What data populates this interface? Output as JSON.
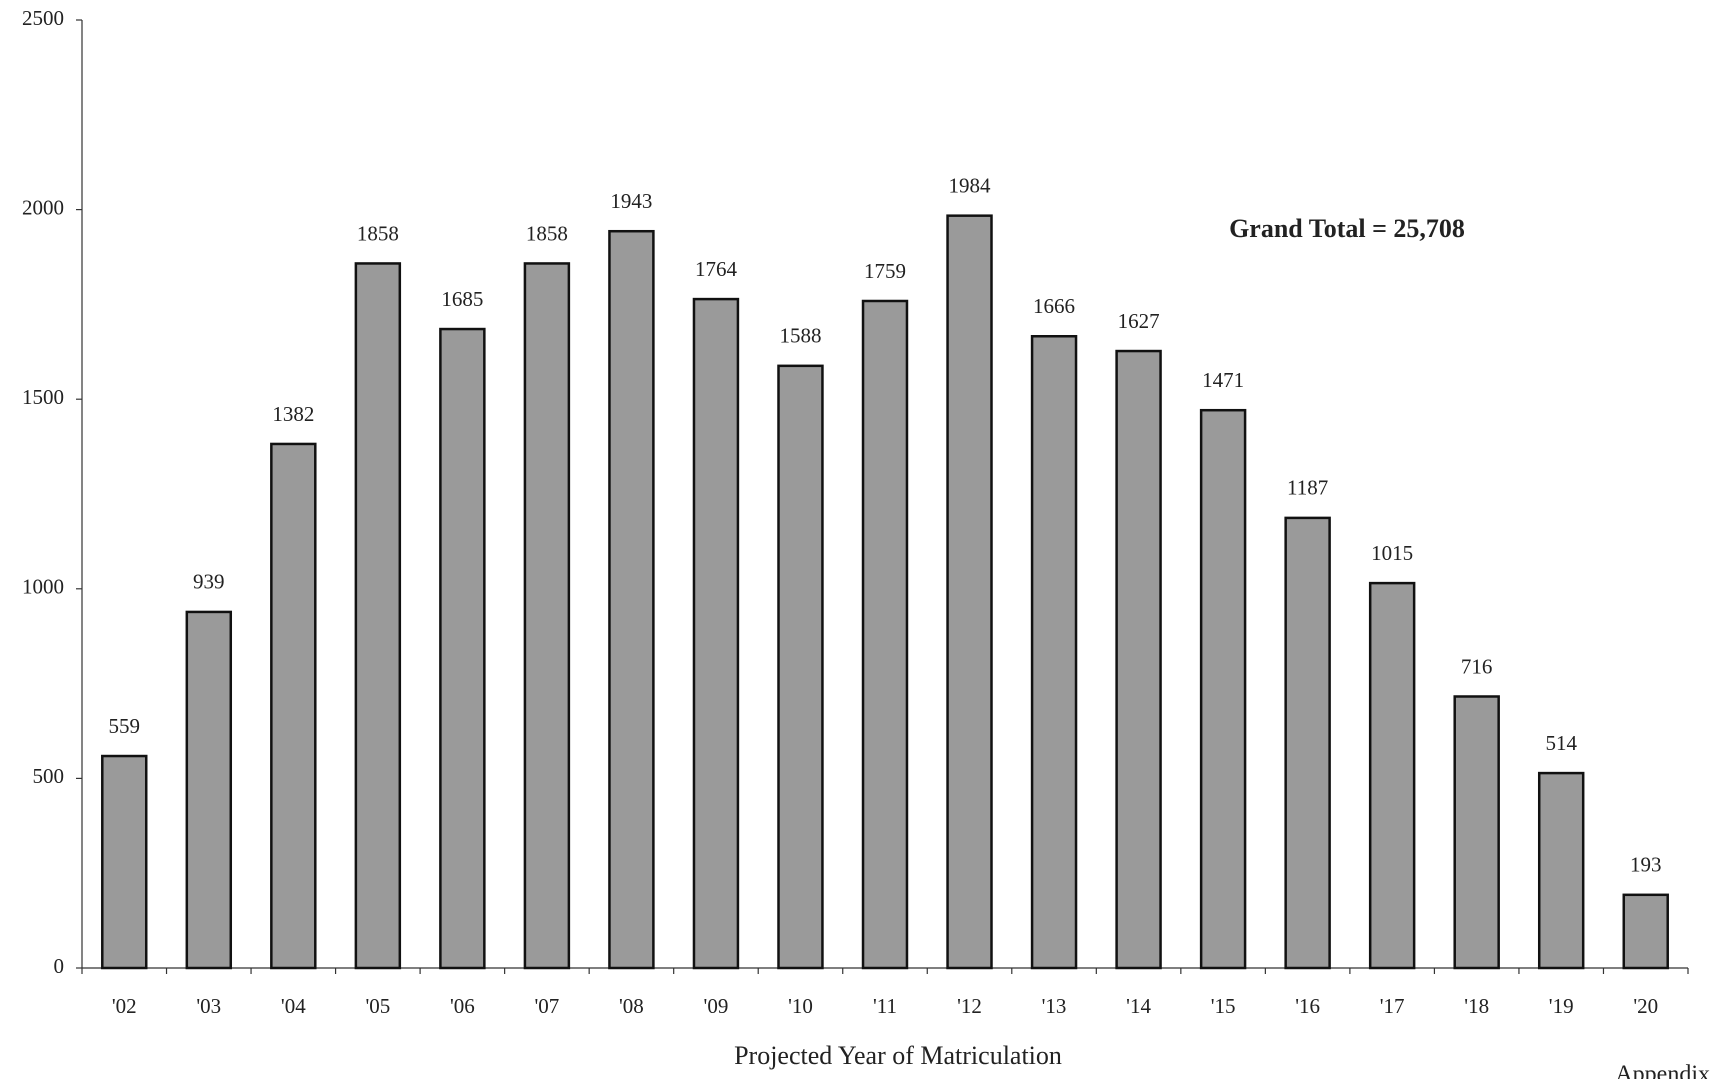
{
  "chart_data": {
    "type": "bar",
    "categories": [
      "'02",
      "'03",
      "'04",
      "'05",
      "'06",
      "'07",
      "'08",
      "'09",
      "'10",
      "'11",
      "'12",
      "'13",
      "'14",
      "'15",
      "'16",
      "'17",
      "'18",
      "'19",
      "'20"
    ],
    "values": [
      559,
      939,
      1382,
      1858,
      1685,
      1858,
      1943,
      1764,
      1588,
      1759,
      1984,
      1666,
      1627,
      1471,
      1187,
      1015,
      716,
      514,
      193
    ],
    "color": "#9a9a9a",
    "ylim": [
      0,
      2500
    ],
    "yticks": [
      0,
      500,
      1000,
      1500,
      2000,
      2500
    ],
    "x_label": "Projected Year of Matriculation",
    "annotation": "Grand Total = 25,708",
    "page_label": "Appendix"
  }
}
